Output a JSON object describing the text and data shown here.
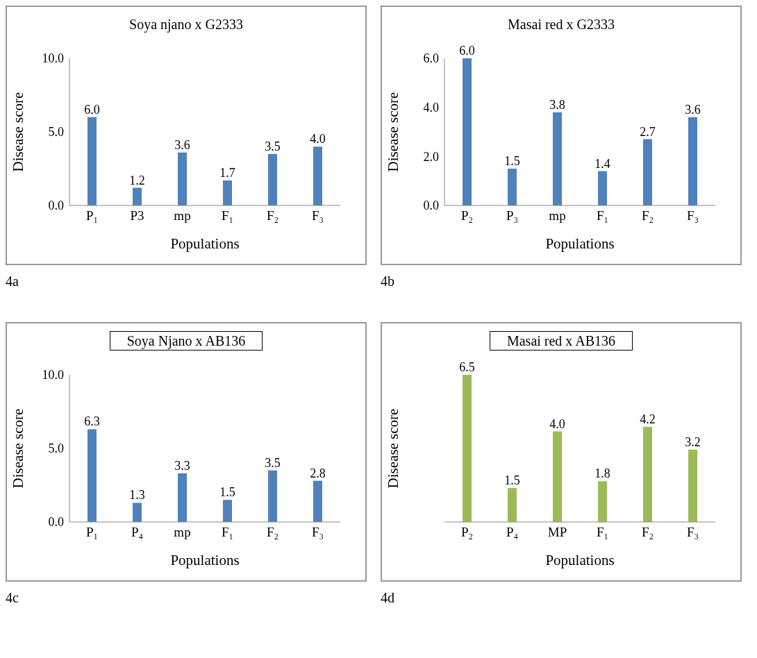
{
  "chart_data": [
    {
      "type": "bar",
      "title": "Soya njano x G2333",
      "xlabel": "Populations",
      "ylabel": "Disease  score",
      "categories": [
        "P₁",
        "P3",
        "mp",
        "F₁",
        "F₂",
        "F₃"
      ],
      "values": [
        6.0,
        1.2,
        3.6,
        1.7,
        3.5,
        4.0
      ],
      "value_labels": [
        "6.0",
        "1.2",
        "3.6",
        "1.7",
        "3.5",
        "4.0"
      ],
      "color": "#4f81bd",
      "ylim": [
        0,
        10
      ],
      "yticks": [
        {
          "value": 0,
          "label": "0.0"
        },
        {
          "value": 5,
          "label": "5.0"
        },
        {
          "value": 10,
          "label": "10.0"
        }
      ],
      "annotations": [
        "4a"
      ]
    },
    {
      "type": "bar",
      "title": "Masai red  x G2333",
      "xlabel": "Populations",
      "ylabel": "Disease   score",
      "categories": [
        "P₂",
        "P₃",
        "mp",
        "F₁",
        "F₂",
        "F₃"
      ],
      "values": [
        6.0,
        1.5,
        3.8,
        1.4,
        2.7,
        3.6
      ],
      "value_labels": [
        "6.0",
        "1.5",
        "3.8",
        "1.4",
        "2.7",
        "3.6"
      ],
      "color": "#4f81bd",
      "ylim": [
        0,
        6
      ],
      "yticks": [
        {
          "value": 0,
          "label": "0.0"
        },
        {
          "value": 2,
          "label": "2.0"
        },
        {
          "value": 4,
          "label": "4.0"
        },
        {
          "value": 6,
          "label": "6.0"
        }
      ],
      "annotations": [
        "4b"
      ]
    },
    {
      "type": "bar",
      "title": "Soya Njano x AB136",
      "xlabel": "Populations",
      "ylabel": "Disease score",
      "categories": [
        "P₁",
        "P₄",
        "mp",
        "F₁",
        "F₂",
        "F₃"
      ],
      "values": [
        6.3,
        1.3,
        3.3,
        1.5,
        3.5,
        2.8
      ],
      "value_labels": [
        "6.3",
        "1.3",
        "3.3",
        "1.5",
        "3.5",
        "2.8"
      ],
      "color": "#4f81bd",
      "ylim": [
        0,
        10
      ],
      "yticks": [
        {
          "value": 0,
          "label": "0.0"
        },
        {
          "value": 5,
          "label": "5.0"
        },
        {
          "value": 10,
          "label": "10.0"
        }
      ],
      "annotations": [
        "4c"
      ]
    },
    {
      "type": "bar",
      "title": "Masai red x AB136",
      "xlabel": "Populations",
      "ylabel": "Disease score",
      "categories": [
        "P₂",
        "P₄",
        "MP",
        "F₁",
        "F₂",
        "F₃"
      ],
      "values": [
        6.5,
        1.5,
        4.0,
        1.8,
        4.2,
        3.2
      ],
      "value_labels": [
        "6.5",
        "1.5",
        "4.0",
        "1.8",
        "4.2",
        "3.2"
      ],
      "color": "#9bbb59",
      "tick_labels": "x",
      "annotations": [
        "4d"
      ]
    }
  ]
}
